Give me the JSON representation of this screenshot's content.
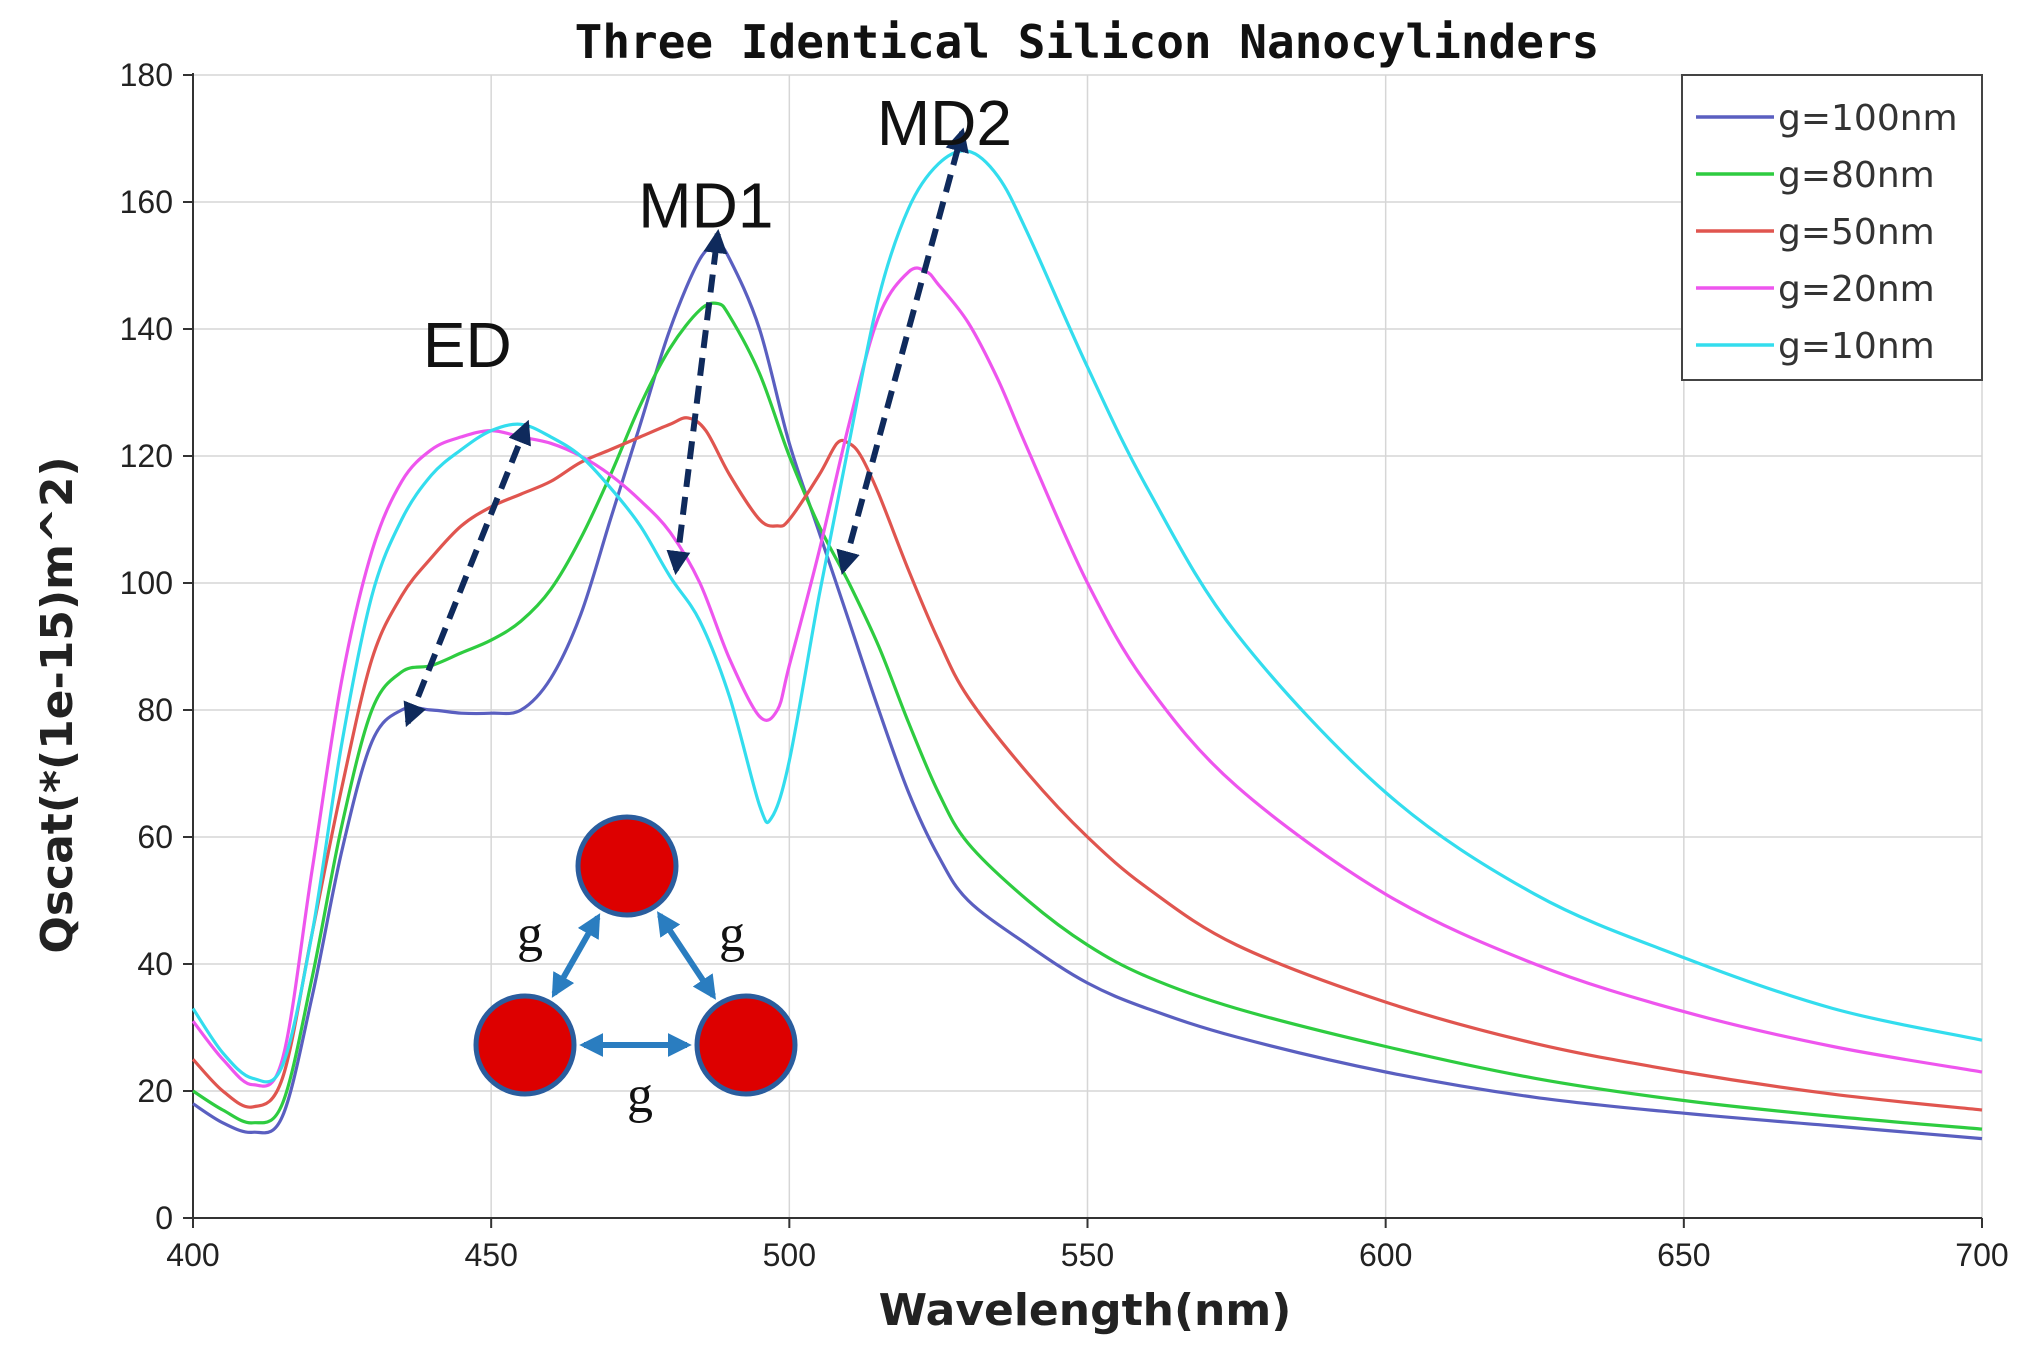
{
  "chart_data": {
    "type": "line",
    "title": "Three Identical Silicon Nanocylinders",
    "xlabel": "Wavelength(nm)",
    "ylabel": "Qscat(*(1e-15)m^2)",
    "xlim": [
      400,
      700
    ],
    "ylim": [
      0,
      180
    ],
    "xticks": [
      400,
      450,
      500,
      550,
      600,
      650,
      700
    ],
    "yticks": [
      0,
      20,
      40,
      60,
      80,
      100,
      120,
      140,
      160,
      180
    ],
    "grid": true,
    "legend_position": "top-right",
    "series": [
      {
        "name": "g=100nm",
        "color": "#5a5fc0",
        "points": [
          [
            400,
            18
          ],
          [
            405,
            15
          ],
          [
            410,
            13.5
          ],
          [
            415,
            16
          ],
          [
            420,
            35
          ],
          [
            425,
            58
          ],
          [
            430,
            75
          ],
          [
            435,
            80
          ],
          [
            440,
            80
          ],
          [
            445,
            79.5
          ],
          [
            450,
            79.5
          ],
          [
            455,
            80
          ],
          [
            460,
            85
          ],
          [
            465,
            95
          ],
          [
            470,
            110
          ],
          [
            475,
            125
          ],
          [
            480,
            140
          ],
          [
            485,
            151
          ],
          [
            488,
            153
          ],
          [
            490,
            151
          ],
          [
            495,
            140
          ],
          [
            500,
            122
          ],
          [
            505,
            108
          ],
          [
            510,
            94
          ],
          [
            515,
            80
          ],
          [
            520,
            67
          ],
          [
            525,
            57
          ],
          [
            530,
            50
          ],
          [
            540,
            43
          ],
          [
            550,
            37
          ],
          [
            560,
            33
          ],
          [
            575,
            28.5
          ],
          [
            600,
            23
          ],
          [
            625,
            19
          ],
          [
            650,
            16.5
          ],
          [
            675,
            14.5
          ],
          [
            700,
            12.5
          ]
        ]
      },
      {
        "name": "g=80nm",
        "color": "#2ecc40",
        "points": [
          [
            400,
            20
          ],
          [
            405,
            17
          ],
          [
            410,
            15
          ],
          [
            415,
            18
          ],
          [
            420,
            38
          ],
          [
            425,
            62
          ],
          [
            430,
            80
          ],
          [
            435,
            86
          ],
          [
            440,
            87
          ],
          [
            445,
            89
          ],
          [
            450,
            91
          ],
          [
            455,
            94
          ],
          [
            460,
            99
          ],
          [
            465,
            107
          ],
          [
            470,
            117
          ],
          [
            475,
            128
          ],
          [
            480,
            137
          ],
          [
            485,
            143
          ],
          [
            488,
            144
          ],
          [
            490,
            142
          ],
          [
            495,
            133
          ],
          [
            500,
            120
          ],
          [
            505,
            109
          ],
          [
            510,
            100
          ],
          [
            515,
            90
          ],
          [
            520,
            78
          ],
          [
            525,
            67
          ],
          [
            530,
            59
          ],
          [
            540,
            50
          ],
          [
            550,
            43
          ],
          [
            560,
            38
          ],
          [
            575,
            33
          ],
          [
            600,
            27
          ],
          [
            625,
            22
          ],
          [
            650,
            18.5
          ],
          [
            675,
            16
          ],
          [
            700,
            14
          ]
        ]
      },
      {
        "name": "g=50nm",
        "color": "#e0554f",
        "points": [
          [
            400,
            25
          ],
          [
            405,
            20
          ],
          [
            410,
            17.5
          ],
          [
            415,
            22
          ],
          [
            420,
            45
          ],
          [
            425,
            68
          ],
          [
            430,
            88
          ],
          [
            435,
            98
          ],
          [
            440,
            104
          ],
          [
            445,
            109
          ],
          [
            450,
            112
          ],
          [
            455,
            114
          ],
          [
            460,
            116
          ],
          [
            465,
            119
          ],
          [
            470,
            121
          ],
          [
            475,
            123
          ],
          [
            480,
            125
          ],
          [
            483,
            126
          ],
          [
            486,
            124
          ],
          [
            490,
            117
          ],
          [
            495,
            110
          ],
          [
            498,
            109
          ],
          [
            500,
            110
          ],
          [
            505,
            117
          ],
          [
            508,
            122
          ],
          [
            510,
            122
          ],
          [
            512,
            120
          ],
          [
            515,
            114
          ],
          [
            520,
            102
          ],
          [
            525,
            91
          ],
          [
            530,
            82
          ],
          [
            540,
            70
          ],
          [
            550,
            60
          ],
          [
            560,
            52
          ],
          [
            575,
            43
          ],
          [
            600,
            34
          ],
          [
            625,
            27.5
          ],
          [
            650,
            23
          ],
          [
            675,
            19.5
          ],
          [
            700,
            17
          ]
        ]
      },
      {
        "name": "g=20nm",
        "color": "#ee55ee",
        "points": [
          [
            400,
            31
          ],
          [
            405,
            25
          ],
          [
            410,
            21
          ],
          [
            415,
            25
          ],
          [
            420,
            55
          ],
          [
            425,
            85
          ],
          [
            430,
            105
          ],
          [
            435,
            116
          ],
          [
            440,
            121
          ],
          [
            445,
            123
          ],
          [
            450,
            124
          ],
          [
            455,
            123
          ],
          [
            460,
            122
          ],
          [
            465,
            120
          ],
          [
            470,
            117
          ],
          [
            475,
            113
          ],
          [
            480,
            108
          ],
          [
            485,
            100
          ],
          [
            490,
            88
          ],
          [
            495,
            79
          ],
          [
            498,
            80
          ],
          [
            500,
            87
          ],
          [
            505,
            105
          ],
          [
            510,
            125
          ],
          [
            515,
            142
          ],
          [
            520,
            149
          ],
          [
            523,
            149
          ],
          [
            525,
            147
          ],
          [
            530,
            141
          ],
          [
            535,
            132
          ],
          [
            540,
            121
          ],
          [
            550,
            100
          ],
          [
            560,
            84
          ],
          [
            575,
            68
          ],
          [
            600,
            51
          ],
          [
            625,
            40
          ],
          [
            650,
            32.5
          ],
          [
            675,
            27
          ],
          [
            700,
            23
          ]
        ]
      },
      {
        "name": "g=10nm",
        "color": "#33ddee",
        "points": [
          [
            400,
            33
          ],
          [
            405,
            26
          ],
          [
            410,
            22
          ],
          [
            415,
            24
          ],
          [
            420,
            45
          ],
          [
            425,
            75
          ],
          [
            430,
            98
          ],
          [
            435,
            110
          ],
          [
            440,
            117
          ],
          [
            445,
            121
          ],
          [
            450,
            124
          ],
          [
            455,
            125
          ],
          [
            460,
            123
          ],
          [
            465,
            120
          ],
          [
            470,
            115
          ],
          [
            475,
            109
          ],
          [
            480,
            101
          ],
          [
            485,
            94
          ],
          [
            490,
            82
          ],
          [
            495,
            65
          ],
          [
            497,
            63
          ],
          [
            500,
            72
          ],
          [
            505,
            98
          ],
          [
            510,
            122
          ],
          [
            515,
            145
          ],
          [
            520,
            159
          ],
          [
            525,
            166
          ],
          [
            530,
            168
          ],
          [
            535,
            164
          ],
          [
            540,
            155
          ],
          [
            550,
            134
          ],
          [
            560,
            115
          ],
          [
            575,
            92
          ],
          [
            600,
            67
          ],
          [
            625,
            51
          ],
          [
            650,
            41
          ],
          [
            675,
            33
          ],
          [
            700,
            28
          ]
        ]
      }
    ],
    "annotations": [
      {
        "text": "ED",
        "x": 446,
        "y": 134
      },
      {
        "text": "MD1",
        "x": 486,
        "y": 156
      },
      {
        "text": "MD2",
        "x": 526,
        "y": 169
      }
    ],
    "arrows": [
      {
        "from": [
          436,
          78
        ],
        "to": [
          456,
          125
        ]
      },
      {
        "from": [
          481,
          102
        ],
        "to": [
          488,
          155
        ]
      },
      {
        "from": [
          509,
          102
        ],
        "to": [
          529,
          171
        ]
      }
    ],
    "arrow_color": "#0f2a5c",
    "inset": {
      "label": "g",
      "circle_color": "#dd0000",
      "circle_stroke": "#2a5d9e",
      "arrow_color": "#2a7dc0"
    }
  }
}
